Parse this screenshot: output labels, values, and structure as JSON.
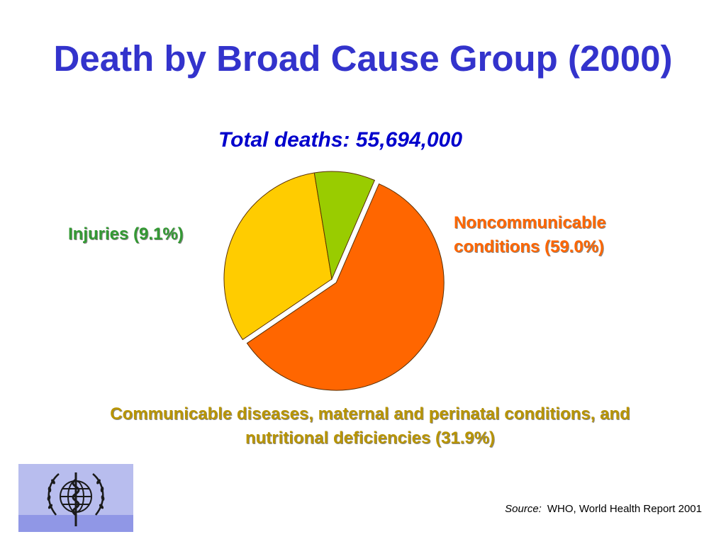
{
  "chart_data": {
    "type": "pie",
    "title": "Death by Broad Cause Group (2000)",
    "subtitle": "Total deaths: 55,694,000",
    "slices": [
      {
        "label_lines": [
          "Noncommunicable",
          "conditions (59.0%)"
        ],
        "value": 59.0,
        "color": "#ff6600"
      },
      {
        "label_lines": [
          "Communicable diseases, maternal and perinatal conditions, and",
          "nutritional deficiencies (31.9%)"
        ],
        "value": 31.9,
        "color": "#ffcc00"
      },
      {
        "label_lines": [
          "Injuries (9.1%)"
        ],
        "value": 9.1,
        "color": "#99cc00"
      }
    ]
  },
  "source": {
    "label": "Source:",
    "text": "WHO, World Health Report 2001"
  },
  "logo": {
    "icon": "who-emblem-icon"
  }
}
